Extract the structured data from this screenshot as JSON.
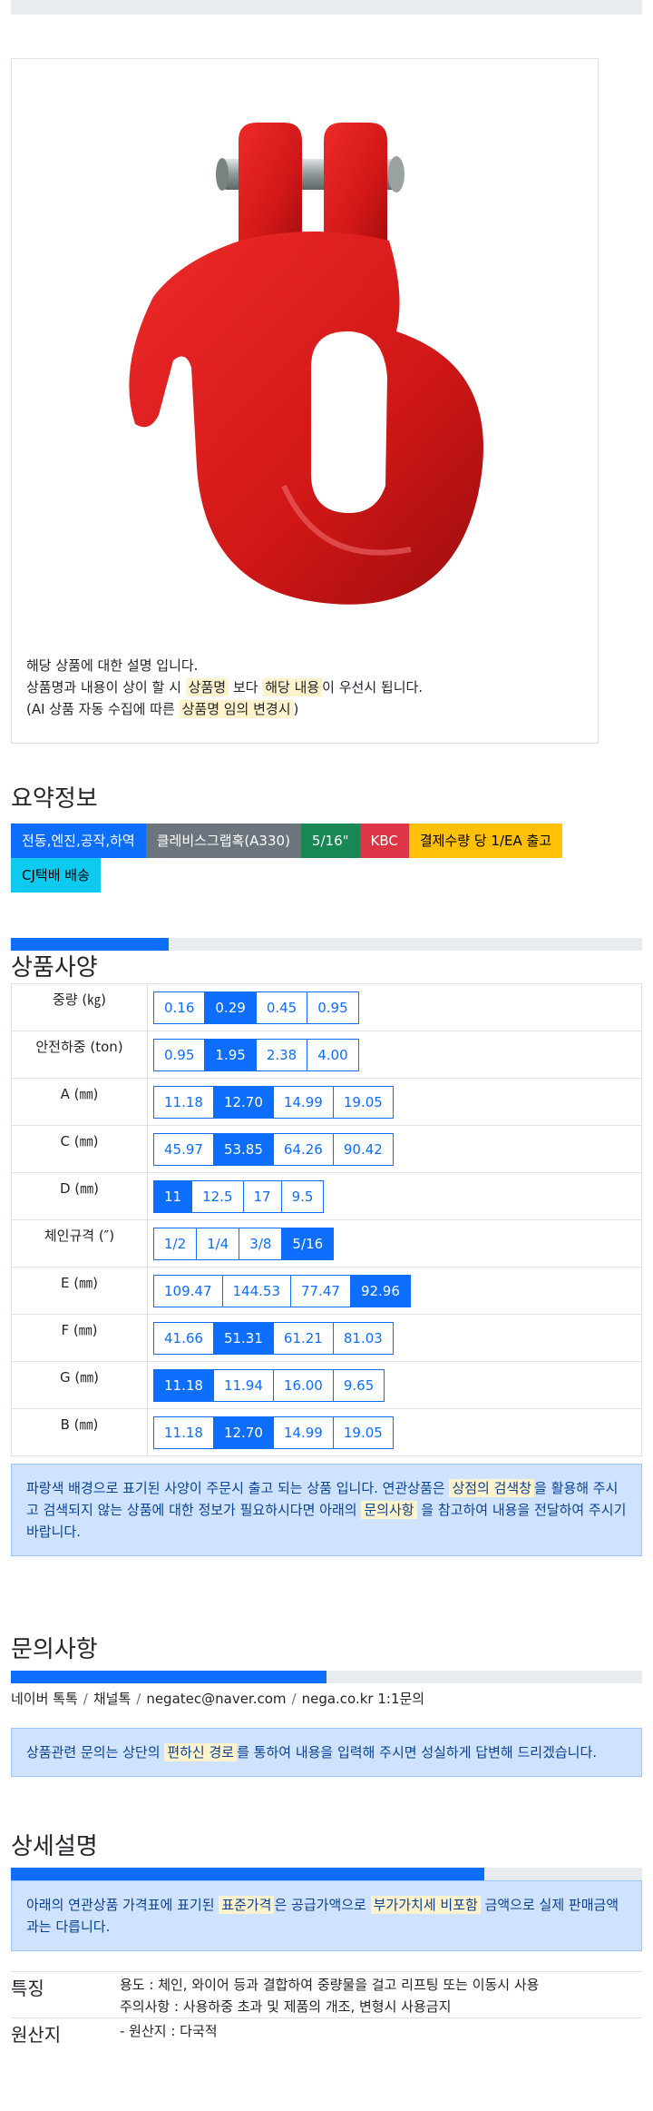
{
  "product": {
    "description_line1": "해당 상품에 대한 설명 입니다.",
    "description_line2_a": "상품명과 내용이 상이 할 시 ",
    "description_line2_h1": "상품명",
    "description_line2_b": " 보다 ",
    "description_line2_h2": "해당 내용",
    "description_line2_c": "이 우선시 됩니다.",
    "description_line3_a": "(AI 상품 자동 수집에 따른 ",
    "description_line3_h": "상품명 임의 변경시",
    "description_line3_b": ")"
  },
  "summary": {
    "title": "요약정보",
    "badges": [
      {
        "label": "전동,엔진,공작,하역",
        "color": "#0d6efd"
      },
      {
        "label": "클레비스그랩혹(A330)",
        "color": "#6c757d"
      },
      {
        "label": "5/16\"",
        "color": "#198754"
      },
      {
        "label": "KBC",
        "color": "#dc3545"
      },
      {
        "label": "결제수량 당 1/EA 출고",
        "color": "#ffc107",
        "text": "#000"
      },
      {
        "label": "CJ택배 배송",
        "color": "#0dcaf0",
        "text": "#000"
      }
    ]
  },
  "spec": {
    "title": "상품사양",
    "progress": 0.25,
    "rows": [
      {
        "label": "중량 (㎏)",
        "options": [
          "0.16",
          "0.29",
          "0.45",
          "0.95"
        ],
        "active": 1
      },
      {
        "label": "안전하중 (ton)",
        "options": [
          "0.95",
          "1.95",
          "2.38",
          "4.00"
        ],
        "active": 1
      },
      {
        "label": "A (㎜)",
        "options": [
          "11.18",
          "12.70",
          "14.99",
          "19.05"
        ],
        "active": 1
      },
      {
        "label": "C (㎜)",
        "options": [
          "45.97",
          "53.85",
          "64.26",
          "90.42"
        ],
        "active": 1
      },
      {
        "label": "D (㎜)",
        "options": [
          "11",
          "12.5",
          "17",
          "9.5"
        ],
        "active": 0
      },
      {
        "label": "체인규격 (″)",
        "options": [
          "1/2",
          "1/4",
          "3/8",
          "5/16"
        ],
        "active": 3
      },
      {
        "label": "E (㎜)",
        "options": [
          "109.47",
          "144.53",
          "77.47",
          "92.96"
        ],
        "active": 3
      },
      {
        "label": "F (㎜)",
        "options": [
          "41.66",
          "51.31",
          "61.21",
          "81.03"
        ],
        "active": 1
      },
      {
        "label": "G (㎜)",
        "options": [
          "11.18",
          "11.94",
          "16.00",
          "9.65"
        ],
        "active": 0
      },
      {
        "label": "B (㎜)",
        "options": [
          "11.18",
          "12.70",
          "14.99",
          "19.05"
        ],
        "active": 1
      }
    ],
    "notice_a": "파랑색 배경으로 표기된 사양이 주문시 출고 되는 상품 입니다. 연관상품은 ",
    "notice_h1": "상점의 검색창",
    "notice_b": "을 활용해 주시고 검색되지 않는 상품에 대한 정보가 필요하시다면 아래의 ",
    "notice_h2": "문의사항",
    "notice_c": " 을 참고하여 내용을 전달하여 주시기 바랍니다."
  },
  "inquiry": {
    "title": "문의사항",
    "progress": 0.5,
    "links": [
      "네이버 톡톡",
      "채널톡",
      "negatec@naver.com",
      "nega.co.kr 1:1문의"
    ],
    "sep": "/",
    "notice_a": "상품관련 문의는 상단의 ",
    "notice_h": "편하신 경로",
    "notice_b": "를 통하여 내용을 입력해 주시면 성실하게 답변해 드리겠습니다."
  },
  "detail": {
    "title": "상세설명",
    "progress": 0.75,
    "notice_a": "아래의 연관상품 가격표에 표기된 ",
    "notice_h1": "표준가격",
    "notice_b": "은 공급가액으로 ",
    "notice_h2": "부가가치세 비포함",
    "notice_c": " 금액으로 실제 판매금액과는 다릅니다.",
    "feature_key": "특징",
    "feature_line1": "용도 : 체인, 와이어 등과 결합하여 중량물을 걸고 리프팅 또는 이동시 사용",
    "feature_line2": "주의사항 : 사용하중 초과 및 제품의 개조, 변형시 사용금지",
    "origin_key": "원산지",
    "origin_value": "- 원산지 : 다국적"
  }
}
